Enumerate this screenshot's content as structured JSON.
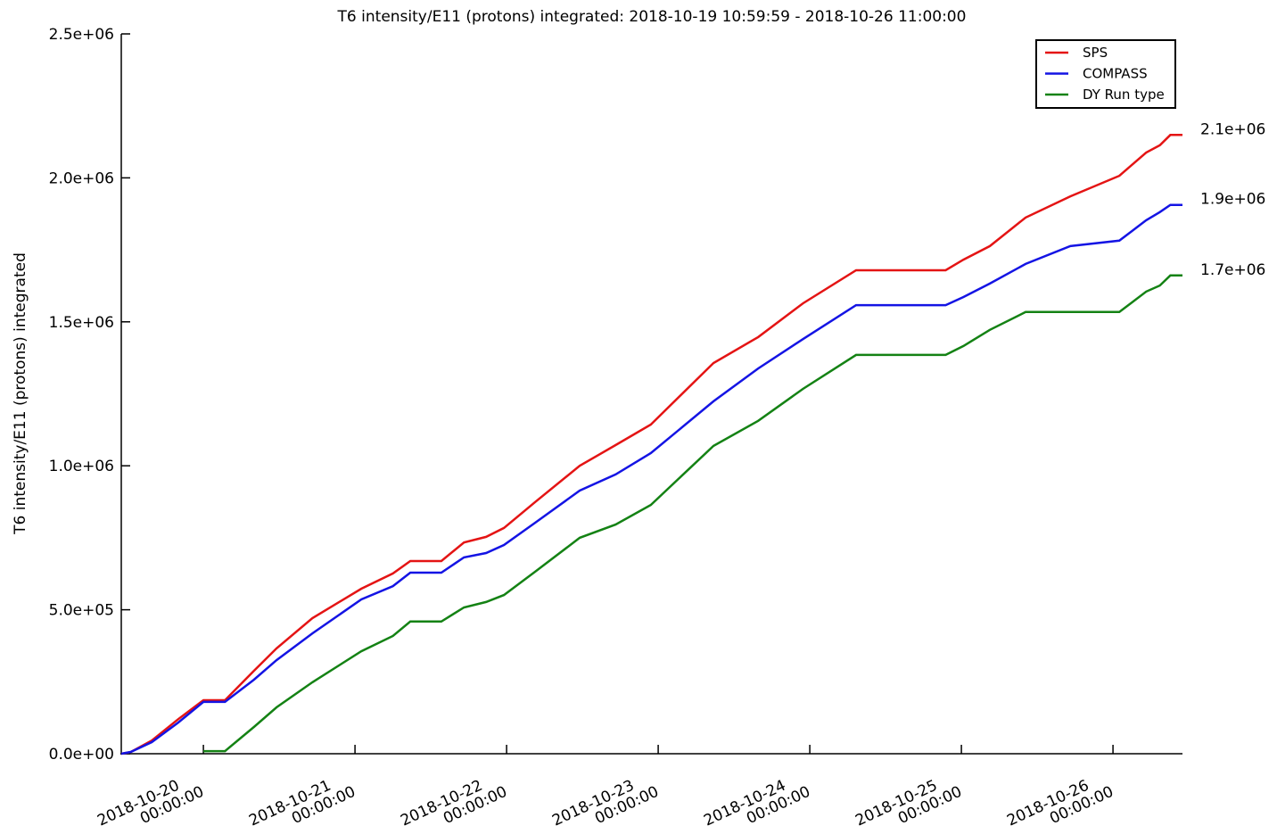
{
  "chart_data": {
    "type": "line",
    "title": "T6 intensity/E11 (protons) integrated: 2018-10-19 10:59:59 - 2018-10-26 11:00:00",
    "y_label": "T6 intensity/E11 (protons) integrated",
    "x": [
      "2018-10-19 10:59:59",
      "2018-10-19 12:30",
      "2018-10-19 15:50",
      "2018-10-19 20:00",
      "2018-10-20 00:00",
      "2018-10-20 03:25",
      "2018-10-20 08:00",
      "2018-10-20 11:35",
      "2018-10-20 17:15",
      "2018-10-21 01:00",
      "2018-10-21 06:00",
      "2018-10-21 08:45",
      "2018-10-21 13:40",
      "2018-10-21 17:15",
      "2018-10-21 20:45",
      "2018-10-21 23:35",
      "2018-10-22 04:30",
      "2018-10-22 11:35",
      "2018-10-22 17:15",
      "2018-10-22 22:50",
      "2018-10-23 08:45",
      "2018-10-23 15:50",
      "2018-10-23 22:55",
      "2018-10-24 07:20",
      "2018-10-24 21:30",
      "2018-10-25 00:20",
      "2018-10-25 04:30",
      "2018-10-25 10:10",
      "2018-10-25 17:15",
      "2018-10-26 01:00",
      "2018-10-26 05:15",
      "2018-10-26 07:25",
      "2018-10-26 09:05",
      "2018-10-26 11:00:00"
    ],
    "series": [
      {
        "name": "SPS",
        "color": "#e41414",
        "end_label": "2.1e+06",
        "values": [
          0,
          6000,
          46000,
          120000,
          186000,
          186000,
          288000,
          366000,
          471000,
          573000,
          626000,
          669000,
          669000,
          734000,
          753000,
          784000,
          874000,
          1000000,
          1072000,
          1143000,
          1357000,
          1447000,
          1564000,
          1679000,
          1679000,
          1716000,
          1763000,
          1862000,
          1936000,
          2007000,
          2088000,
          2113000,
          2149000,
          2149000
        ]
      },
      {
        "name": "COMPASS",
        "color": "#1414e4",
        "end_label": "1.9e+06",
        "values": [
          0,
          6200,
          40300,
          108000,
          180000,
          180000,
          257000,
          325000,
          418000,
          536000,
          582000,
          629000,
          629000,
          682000,
          697000,
          725000,
          802000,
          914000,
          970000,
          1044000,
          1224000,
          1338000,
          1440000,
          1558000,
          1558000,
          1586000,
          1633000,
          1701000,
          1763000,
          1782000,
          1853000,
          1881000,
          1906000,
          1906000
        ]
      },
      {
        "name": "DY Run type",
        "color": "#148214",
        "end_label": "1.7e+06",
        "values": [
          null,
          null,
          null,
          null,
          9000,
          9000,
          93000,
          161000,
          248000,
          356000,
          409000,
          459000,
          459000,
          508000,
          527000,
          551000,
          632000,
          750000,
          796000,
          864000,
          1069000,
          1156000,
          1267000,
          1385000,
          1385000,
          1416000,
          1472000,
          1534000,
          1534000,
          1534000,
          1605000,
          1626000,
          1661000,
          1661000
        ]
      }
    ],
    "xlim": [
      "2018-10-19 10:59:59",
      "2018-10-26 11:00:00"
    ],
    "xticks": [
      {
        "value": "2018-10-20 00:00:00",
        "label": "2018-10-20 00:00:00"
      },
      {
        "value": "2018-10-21 00:00:00",
        "label": "2018-10-21 00:00:00"
      },
      {
        "value": "2018-10-22 00:00:00",
        "label": "2018-10-22 00:00:00"
      },
      {
        "value": "2018-10-23 00:00:00",
        "label": "2018-10-23 00:00:00"
      },
      {
        "value": "2018-10-24 00:00:00",
        "label": "2018-10-24 00:00:00"
      },
      {
        "value": "2018-10-25 00:00:00",
        "label": "2018-10-25 00:00:00"
      },
      {
        "value": "2018-10-26 00:00:00",
        "label": "2018-10-26 00:00:00"
      }
    ],
    "ylim": [
      0,
      2500000
    ],
    "yticks": [
      {
        "value": 0,
        "label": "0.0e+00"
      },
      {
        "value": 500000,
        "label": "5.0e+05"
      },
      {
        "value": 1000000,
        "label": "1.0e+06"
      },
      {
        "value": 1500000,
        "label": "1.5e+06"
      },
      {
        "value": 2000000,
        "label": "2.0e+06"
      },
      {
        "value": 2500000,
        "label": "2.5e+06"
      }
    ],
    "legend": "upper right",
    "grid": false
  }
}
